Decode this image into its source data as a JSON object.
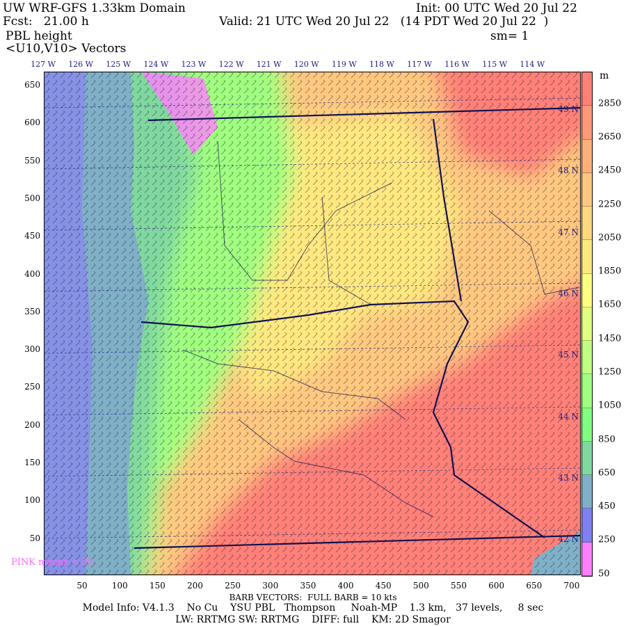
{
  "header": {
    "title": "UW WRF-GFS 1.33km Domain",
    "init": "Init: 00 UTC Wed 20 Jul 22",
    "fcst": "Fcst:   21.00 h",
    "valid": "Valid: 21 UTC Wed 20 Jul 22   (14 PDT Wed 20 Jul 22  )",
    "field": "PBL height",
    "smoothing": "sm= 1",
    "vectors": "<U10,V10> Vectors"
  },
  "longitudes": [
    "127 W",
    "126 W",
    "125 W",
    "124 W",
    "123 W",
    "122 W",
    "121 W",
    "120 W",
    "119 W",
    "118 W",
    "117 W",
    "116 W",
    "115 W",
    "114 W"
  ],
  "latitudes": [
    "49 N",
    "48 N",
    "47 N",
    "46 N",
    "45 N",
    "44 N",
    "43 N",
    "42 N"
  ],
  "y_ticks": [
    "650",
    "600",
    "550",
    "500",
    "450",
    "400",
    "350",
    "300",
    "250",
    "200",
    "150",
    "100",
    "50"
  ],
  "x_ticks": [
    "50",
    "100",
    "150",
    "200",
    "250",
    "300",
    "350",
    "400",
    "450",
    "500",
    "550",
    "600",
    "650",
    "700"
  ],
  "colorbar": {
    "unit": "m",
    "labels": [
      "2850",
      "2650",
      "2450",
      "2250",
      "2050",
      "1850",
      "1650",
      "1450",
      "1250",
      "1050",
      "850",
      "650",
      "450",
      "250",
      "50"
    ],
    "colors": [
      "#ff8078",
      "#ff9878",
      "#ffb078",
      "#ffc880",
      "#ffd880",
      "#ffe880",
      "#ffff80",
      "#e0ff80",
      "#c0ff80",
      "#a0ff80",
      "#80ff80",
      "#80d8a0",
      "#80b0c8",
      "#8080f0",
      "#ff80ff"
    ]
  },
  "pink_note": "PINK means < 50",
  "footer": {
    "barb": "BARB VECTORS:  FULL BARB = 10 kts",
    "model": "Model Info: V4.1.3    No Cu    YSU PBL   Thompson     Noah-MP    1.3 km,   37 levels,     8 sec",
    "physics": "LW: RRTMG SW: RRTMG    DIFF: full    KM: 2D Smagor"
  }
}
